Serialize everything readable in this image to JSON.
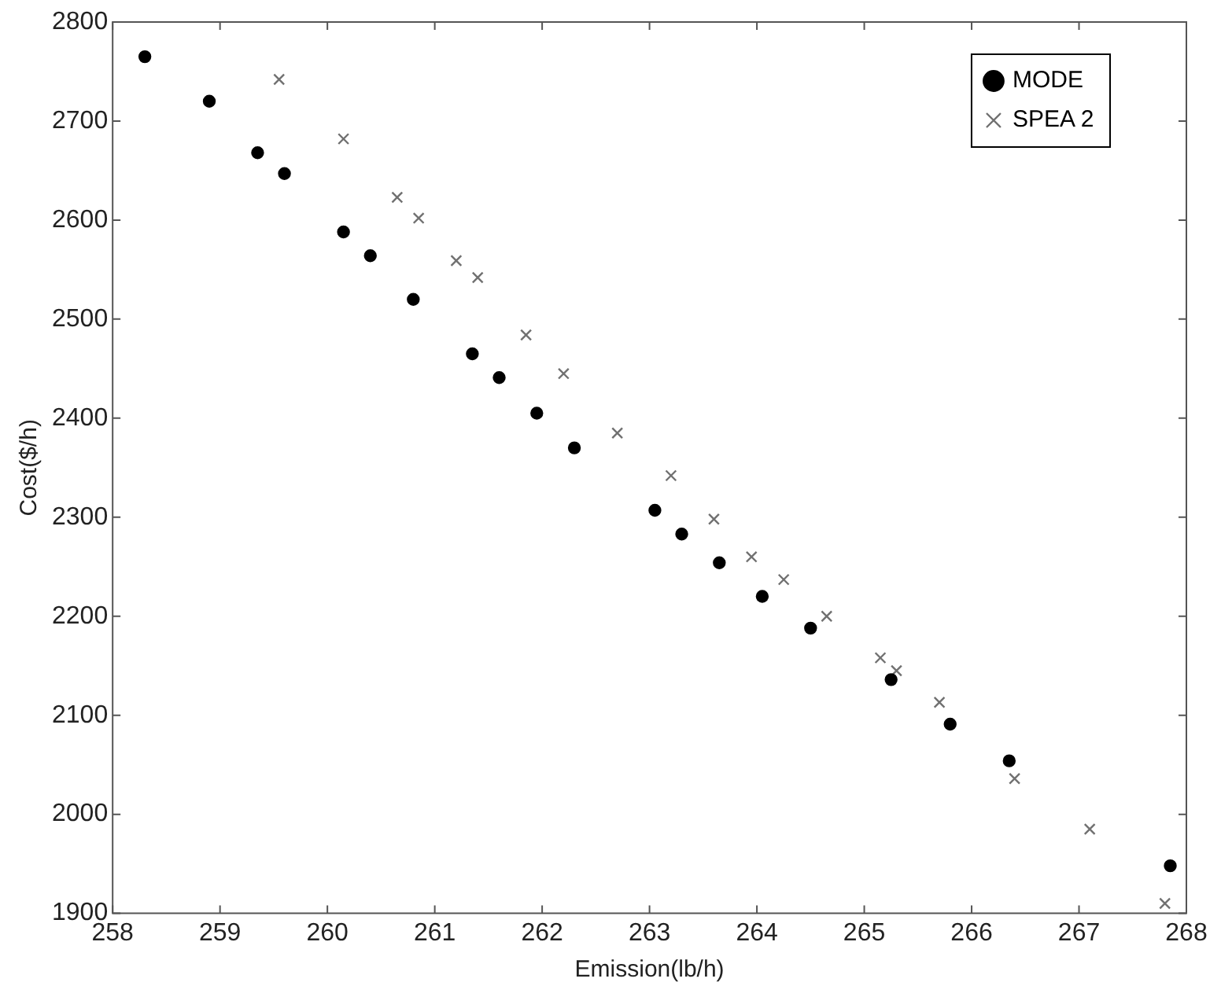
{
  "chart_data": {
    "type": "scatter",
    "xlabel": "Emission(lb/h)",
    "ylabel": "Cost($/h)",
    "xlim": [
      258,
      268
    ],
    "xticks": [
      258,
      259,
      260,
      261,
      262,
      263,
      264,
      265,
      266,
      267,
      268
    ],
    "ylim": [
      1900,
      2800
    ],
    "yticks": [
      1900,
      2000,
      2100,
      2200,
      2300,
      2400,
      2500,
      2600,
      2700,
      2800
    ],
    "grid": false,
    "legend": "top right",
    "series": [
      {
        "name": "MODE",
        "color": "#000000",
        "marker": "circle",
        "x": [
          258.3,
          258.9,
          259.35,
          259.6,
          260.15,
          260.4,
          260.8,
          261.35,
          261.6,
          261.95,
          262.3,
          263.05,
          263.3,
          263.65,
          264.05,
          264.5,
          265.25,
          265.8,
          266.35,
          267.85
        ],
        "values": [
          2765,
          2720,
          2668,
          2647,
          2588,
          2564,
          2520,
          2465,
          2441,
          2405,
          2370,
          2307,
          2283,
          2254,
          2220,
          2188,
          2136,
          2091,
          2054,
          1948
        ]
      },
      {
        "name": "SPEA 2",
        "color": "#707070",
        "marker": "cross",
        "x": [
          259.55,
          260.15,
          260.65,
          260.85,
          261.2,
          261.4,
          261.85,
          262.2,
          262.7,
          263.2,
          263.6,
          263.95,
          264.25,
          264.65,
          265.15,
          265.3,
          265.7,
          266.4,
          267.1,
          267.8
        ],
        "values": [
          2742,
          2682,
          2623,
          2602,
          2559,
          2542,
          2484,
          2445,
          2385,
          2342,
          2298,
          2260,
          2237,
          2200,
          2158,
          2145,
          2113,
          2036,
          1985,
          1910
        ]
      }
    ]
  }
}
